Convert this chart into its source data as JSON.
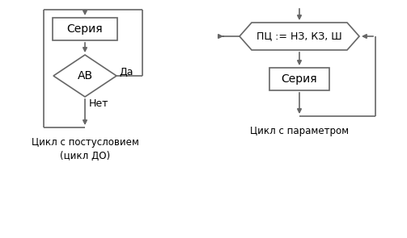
{
  "left_label": "Цикл с постусловием\n(цикл ДО)",
  "right_label": "Цикл с параметром",
  "box1_text": "Серия",
  "diamond1_text": "АВ",
  "diamond1_yes": "Да",
  "diamond1_no": "Нет",
  "hex_text": "ПЦ := НЗ, КЗ, Ш",
  "box2_text": "Серия",
  "line_color": "#666666",
  "fill_color": "#ffffff",
  "text_color": "#000000",
  "bg_color": "#ffffff"
}
